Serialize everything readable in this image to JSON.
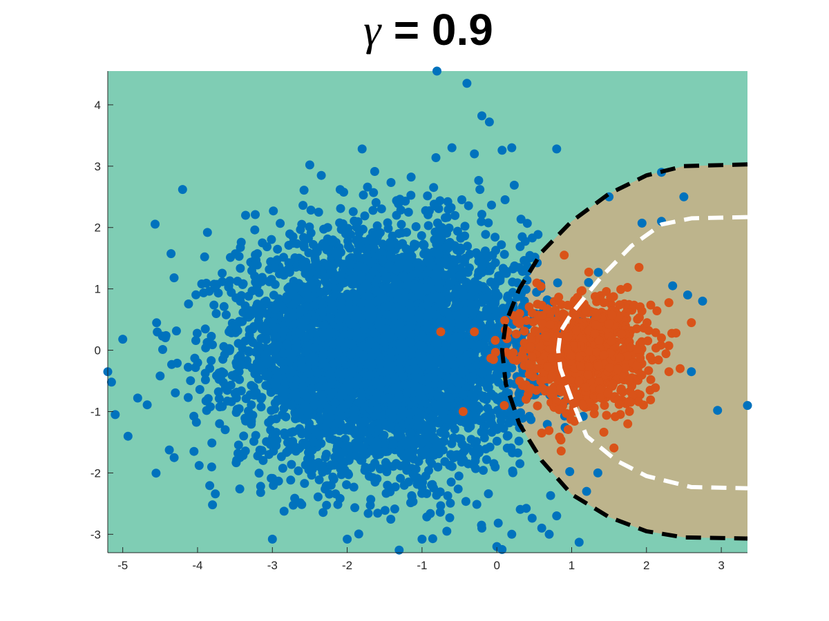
{
  "chart_data": {
    "type": "scatter",
    "title_symbol": "γ",
    "title_value": "= 0.9",
    "xlabel": "",
    "ylabel": "",
    "xlim": [
      -5.2,
      3.35
    ],
    "ylim": [
      -3.3,
      4.55
    ],
    "x_ticks": [
      "-5",
      "-4",
      "-3",
      "-2",
      "-1",
      "0",
      "1",
      "2",
      "3"
    ],
    "y_ticks": [
      "-3",
      "-2",
      "-1",
      "0",
      "1",
      "2",
      "3",
      "4"
    ],
    "grid": false,
    "legend": "none",
    "colors": {
      "background_region": "#7fcdb4",
      "decision_region": "#bdb48c",
      "class_a": "#0072bd",
      "class_b": "#d95319",
      "boundary_outer": "#000000",
      "boundary_inner": "#ffffff"
    },
    "series": [
      {
        "color": "#0072bd",
        "distribution": {
          "n": 5000,
          "mean": [
            -1.5,
            0.0
          ],
          "std": [
            0.95,
            0.95
          ]
        },
        "points": [
          [
            -0.8,
            4.55
          ],
          [
            -0.4,
            4.35
          ],
          [
            -0.2,
            3.82
          ],
          [
            -0.1,
            3.72
          ],
          [
            -5.2,
            -0.35
          ],
          [
            -5.15,
            -0.52
          ],
          [
            -5.1,
            -1.05
          ],
          [
            -5.0,
            0.18
          ],
          [
            -4.8,
            -0.78
          ],
          [
            -4.2,
            2.62
          ],
          [
            -4.5,
            -0.42
          ],
          [
            -3.8,
            -2.52
          ],
          [
            -3.0,
            -3.08
          ],
          [
            -2.0,
            -3.08
          ],
          [
            -1.0,
            -3.08
          ],
          [
            0.0,
            -3.2
          ],
          [
            1.1,
            -3.13
          ],
          [
            0.6,
            -2.9
          ],
          [
            2.35,
            1.05
          ],
          [
            2.55,
            0.9
          ],
          [
            2.75,
            0.8
          ],
          [
            2.6,
            -0.35
          ],
          [
            2.5,
            2.5
          ],
          [
            2.2,
            2.1
          ],
          [
            2.95,
            -0.98
          ],
          [
            3.35,
            -0.9
          ],
          [
            0.8,
            3.28
          ],
          [
            2.2,
            2.9
          ],
          [
            1.5,
            2.5
          ],
          [
            -2.5,
            3.02
          ],
          [
            -1.8,
            3.28
          ],
          [
            -0.6,
            3.3
          ],
          [
            -0.3,
            3.2
          ],
          [
            0.2,
            3.3
          ],
          [
            0.2,
            -3.0
          ],
          [
            -0.2,
            -2.9
          ],
          [
            0.8,
            -2.7
          ],
          [
            1.35,
            -2.0
          ],
          [
            1.2,
            -2.3
          ],
          [
            0.7,
            -3.0
          ]
        ]
      },
      {
        "color": "#d95319",
        "distribution": {
          "n": 900,
          "mean": [
            1.15,
            -0.05
          ],
          "std": [
            0.42,
            0.45
          ]
        },
        "points": [
          [
            -0.75,
            0.3
          ],
          [
            -0.45,
            -1.0
          ],
          [
            -0.3,
            0.3
          ],
          [
            2.6,
            0.45
          ],
          [
            2.45,
            -0.3
          ],
          [
            2.3,
            -0.35
          ],
          [
            1.9,
            1.35
          ],
          [
            1.75,
            -1.2
          ],
          [
            0.9,
            1.55
          ],
          [
            0.6,
            -1.35
          ],
          [
            0.1,
            -0.9
          ],
          [
            2.2,
            0.2
          ]
        ]
      }
    ],
    "boundaries": [
      {
        "color": "#000000",
        "style": "dashed",
        "points": [
          [
            3.35,
            3.03
          ],
          [
            2.5,
            3.0
          ],
          [
            2.0,
            2.85
          ],
          [
            1.5,
            2.55
          ],
          [
            1.0,
            2.1
          ],
          [
            0.6,
            1.6
          ],
          [
            0.3,
            1.0
          ],
          [
            0.12,
            0.45
          ],
          [
            0.07,
            0.0
          ],
          [
            0.12,
            -0.55
          ],
          [
            0.3,
            -1.2
          ],
          [
            0.6,
            -1.8
          ],
          [
            1.0,
            -2.35
          ],
          [
            1.5,
            -2.72
          ],
          [
            2.0,
            -2.95
          ],
          [
            2.5,
            -3.05
          ],
          [
            3.35,
            -3.07
          ]
        ]
      },
      {
        "color": "#ffffff",
        "style": "dashed",
        "points": [
          [
            3.35,
            2.17
          ],
          [
            2.6,
            2.15
          ],
          [
            2.2,
            2.05
          ],
          [
            1.8,
            1.7
          ],
          [
            1.4,
            1.2
          ],
          [
            1.0,
            0.6
          ],
          [
            0.85,
            0.3
          ],
          [
            0.82,
            0.0
          ],
          [
            0.85,
            -0.3
          ],
          [
            1.0,
            -0.8
          ],
          [
            1.2,
            -1.4
          ],
          [
            1.6,
            -1.8
          ],
          [
            2.0,
            -2.05
          ],
          [
            2.6,
            -2.23
          ],
          [
            3.35,
            -2.25
          ]
        ]
      }
    ]
  }
}
